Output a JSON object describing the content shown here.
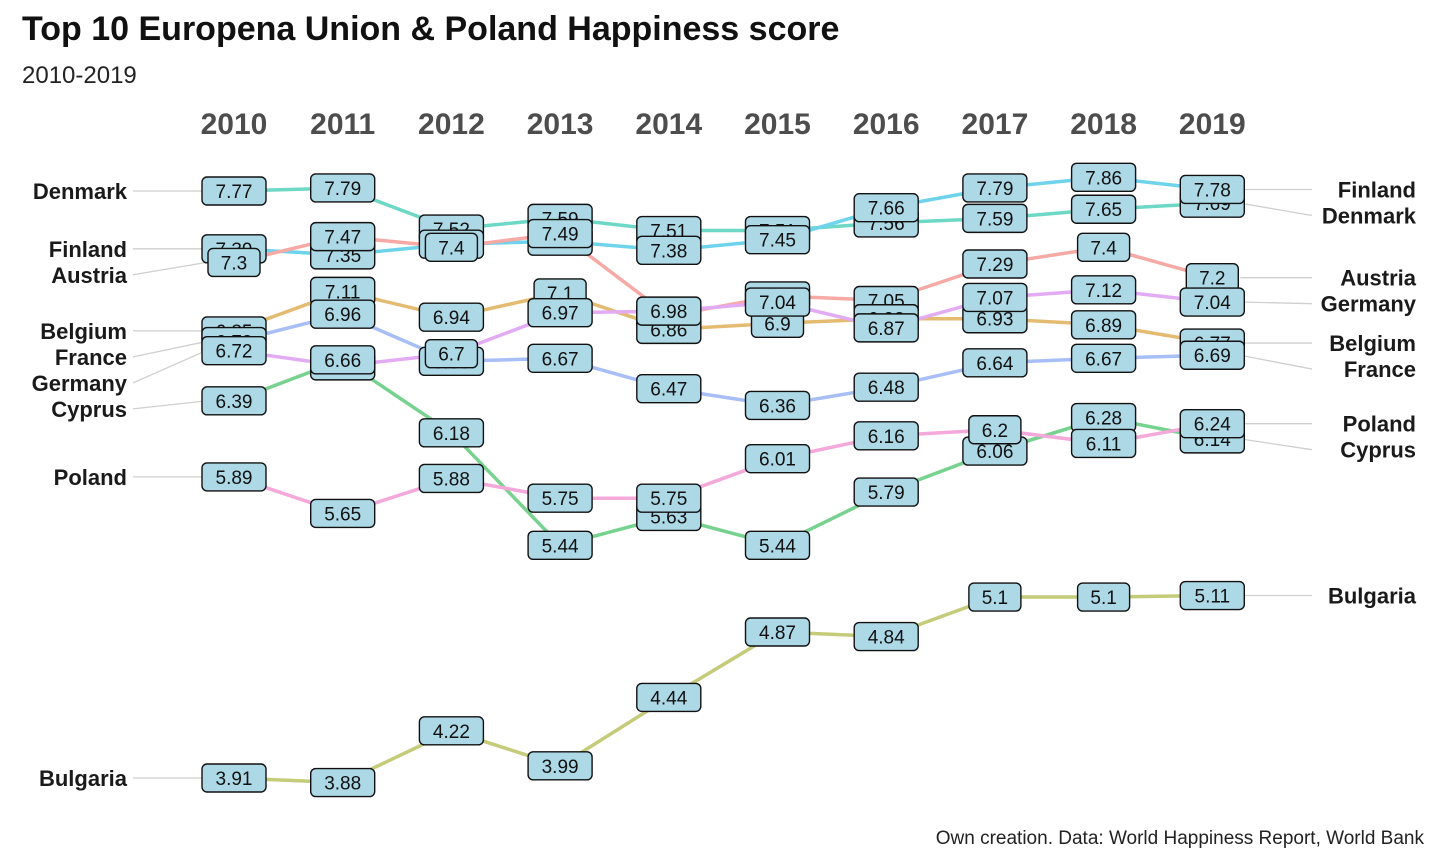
{
  "title": "Top 10 Europena Union & Poland Happiness score",
  "subtitle": "2010-2019",
  "caption": "Own creation. Data: World Happiness Report, World Bank",
  "chart_data": {
    "type": "line",
    "subtype": "bump",
    "title": "Top 10 Europena Union & Poland Happiness score",
    "subtitle": "2010-2019",
    "xlabel": "",
    "ylabel": "",
    "x": [
      "2010",
      "2011",
      "2012",
      "2013",
      "2014",
      "2015",
      "2016",
      "2017",
      "2018",
      "2019"
    ],
    "ylim": [
      3.7,
      8.1
    ],
    "grid": false,
    "series": [
      {
        "name": "Denmark",
        "color": "#6ED8C6",
        "values": [
          7.77,
          7.79,
          7.52,
          7.59,
          7.51,
          7.51,
          7.56,
          7.59,
          7.65,
          7.69
        ]
      },
      {
        "name": "Finland",
        "color": "#6FD3EC",
        "values": [
          7.39,
          7.35,
          7.42,
          7.44,
          7.38,
          7.45,
          7.66,
          7.79,
          7.86,
          7.78
        ]
      },
      {
        "name": "Austria",
        "color": "#F6A9A5",
        "values": [
          7.3,
          7.47,
          7.4,
          7.49,
          6.95,
          7.08,
          7.05,
          7.29,
          7.4,
          7.2
        ]
      },
      {
        "name": "Belgium",
        "color": "#E3BC72",
        "values": [
          6.85,
          7.11,
          6.94,
          7.1,
          6.86,
          6.9,
          6.93,
          6.93,
          6.89,
          6.77
        ]
      },
      {
        "name": "France",
        "color": "#A8BEF7",
        "values": [
          6.78,
          6.96,
          6.65,
          6.67,
          6.47,
          6.36,
          6.48,
          6.64,
          6.67,
          6.69
        ]
      },
      {
        "name": "Germany",
        "color": "#E2ABF3",
        "values": [
          6.72,
          6.62,
          6.7,
          6.97,
          6.98,
          7.04,
          6.87,
          7.07,
          7.12,
          7.04
        ]
      },
      {
        "name": "Cyprus",
        "color": "#78D28F",
        "values": [
          6.39,
          6.66,
          6.18,
          5.44,
          5.63,
          5.44,
          5.79,
          6.06,
          6.28,
          6.14
        ]
      },
      {
        "name": "Poland",
        "color": "#F5A8DA",
        "values": [
          5.89,
          5.65,
          5.88,
          5.75,
          5.75,
          6.01,
          6.16,
          6.2,
          6.11,
          6.24
        ]
      },
      {
        "name": "Bulgaria",
        "color": "#C4CB79",
        "values": [
          3.91,
          3.88,
          4.22,
          3.99,
          4.44,
          4.87,
          4.84,
          5.1,
          5.1,
          5.11
        ]
      }
    ],
    "left_labels": [
      "Denmark",
      "Finland",
      "Austria",
      "Belgium",
      "France",
      "Germany",
      "Cyprus",
      "Poland",
      "Bulgaria"
    ],
    "right_labels": [
      "Finland",
      "Denmark",
      "Austria",
      "Germany",
      "Belgium",
      "France",
      "Poland",
      "Cyprus",
      "Bulgaria"
    ]
  }
}
